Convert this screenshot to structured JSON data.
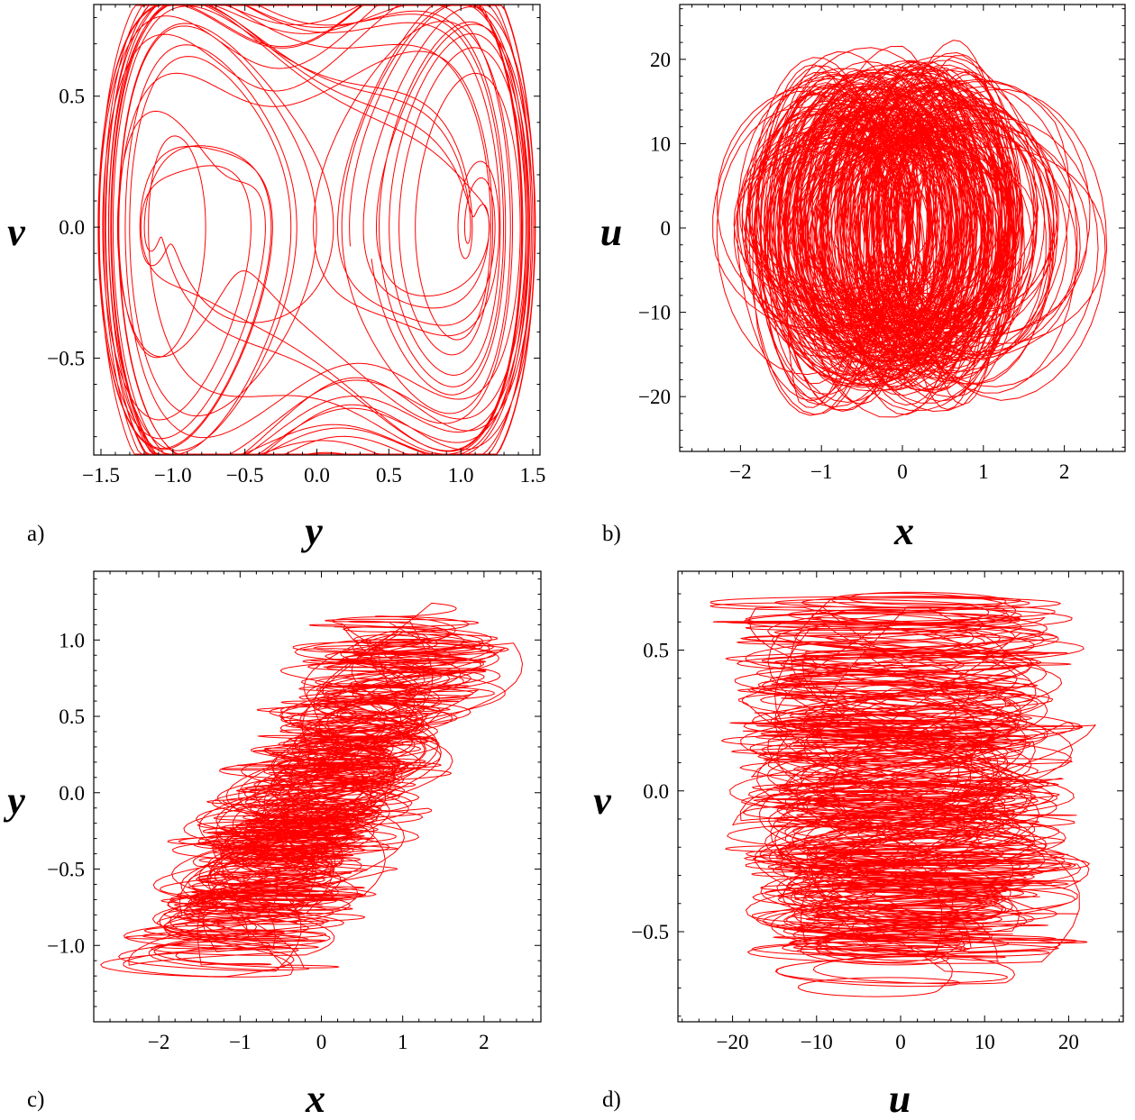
{
  "colors": {
    "trace": "#ff0000",
    "axes": "#000000",
    "background": "#ffffff"
  },
  "chart_data": [
    {
      "panel_label": "a)",
      "type": "line",
      "xlabel": "y",
      "ylabel": "v",
      "xlim": [
        -1.55,
        1.55
      ],
      "ylim": [
        -0.87,
        0.85
      ],
      "xticks": [
        -1.5,
        -1.0,
        -0.5,
        0.0,
        0.5,
        1.0,
        1.5
      ],
      "xtick_labels": [
        "−1.5",
        "−1.0",
        "−0.5",
        "0.0",
        "0.5",
        "1.0",
        "1.5"
      ],
      "yticks": [
        -0.5,
        0.0,
        0.5
      ],
      "ytick_labels": [
        "−0.5",
        "0.0",
        "0.5"
      ],
      "grid": false,
      "description_of_shape": "double-well chaotic phase portrait with two lobes centred near y = -1.1 and y = 1.1",
      "series": [
        {
          "samples": 9000,
          "wells": [
            -1.1,
            1.1
          ],
          "x_extent": [
            -1.5,
            1.5
          ],
          "y_extent": [
            -0.82,
            0.81
          ]
        }
      ]
    },
    {
      "panel_label": "b)",
      "type": "line",
      "xlabel": "x",
      "ylabel": "u",
      "xlim": [
        -2.75,
        2.75
      ],
      "ylim": [
        -26.5,
        26.5
      ],
      "xticks": [
        -2,
        -1,
        0,
        1,
        2
      ],
      "xtick_labels": [
        "−2",
        "−1",
        "0",
        "1",
        "2"
      ],
      "yticks": [
        -20,
        -10,
        0,
        10,
        20
      ],
      "ytick_labels": [
        "−20",
        "−10",
        "0",
        "10",
        "20"
      ],
      "grid": false,
      "series": [
        {
          "samples": 9000,
          "x_extent": [
            -2.6,
            2.6
          ],
          "y_extent": [
            -25,
            25
          ]
        }
      ]
    },
    {
      "panel_label": "c)",
      "type": "line",
      "xlabel": "x",
      "ylabel": "y",
      "xlim": [
        -2.8,
        2.7
      ],
      "ylim": [
        -1.5,
        1.45
      ],
      "xticks": [
        -2,
        -1,
        0,
        1,
        2
      ],
      "xtick_labels": [
        "−2",
        "−1",
        "0",
        "1",
        "2"
      ],
      "yticks": [
        -1.0,
        -0.5,
        0.0,
        0.5,
        1.0
      ],
      "ytick_labels": [
        "−1.0",
        "−0.5",
        "0.0",
        "0.5",
        "1.0"
      ],
      "grid": false,
      "series": [
        {
          "samples": 9000,
          "x_extent": [
            -2.6,
            2.6
          ],
          "y_extent": [
            -1.4,
            1.4
          ]
        }
      ]
    },
    {
      "panel_label": "d)",
      "type": "line",
      "xlabel": "u",
      "ylabel": "v",
      "xlim": [
        -26.5,
        26.5
      ],
      "ylim": [
        -0.82,
        0.78
      ],
      "xticks": [
        -20,
        -10,
        0,
        10,
        20
      ],
      "xtick_labels": [
        "−20",
        "−10",
        "0",
        "10",
        "20"
      ],
      "yticks": [
        -0.5,
        0.0,
        0.5
      ],
      "ytick_labels": [
        "−0.5",
        "0.0",
        "0.5"
      ],
      "grid": false,
      "series": [
        {
          "samples": 9000,
          "x_extent": [
            -25,
            25
          ],
          "y_extent": [
            -0.78,
            0.75
          ]
        }
      ]
    }
  ]
}
